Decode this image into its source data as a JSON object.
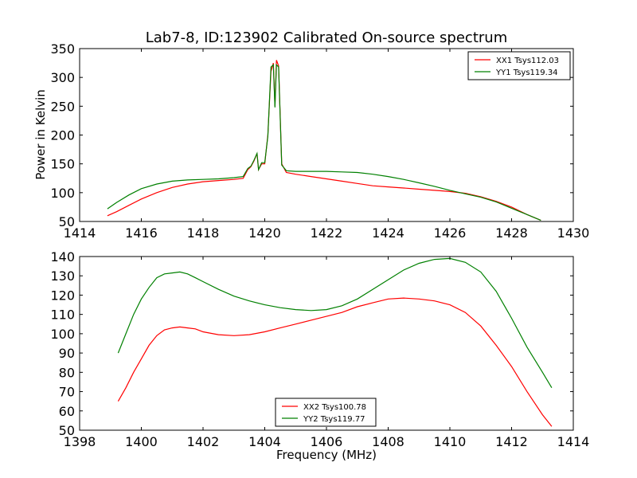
{
  "chart_data": [
    {
      "type": "line",
      "title": "Lab7-8, ID:123902 Calibrated On-source spectrum",
      "xlabel": "",
      "ylabel": "Power in Kelvin",
      "xlim": [
        1414,
        1430
      ],
      "ylim": [
        50,
        350
      ],
      "xticks": [
        1414,
        1416,
        1418,
        1420,
        1422,
        1424,
        1426,
        1428,
        1430
      ],
      "yticks": [
        50,
        100,
        150,
        200,
        250,
        300,
        350
      ],
      "grid": false,
      "legend_position": "upper right",
      "series": [
        {
          "name": "XX1 Tsys112.03",
          "color": "#ff0000",
          "x": [
            1414.9,
            1415.2,
            1415.6,
            1416.0,
            1416.5,
            1417.0,
            1417.5,
            1418.0,
            1418.5,
            1419.0,
            1419.3,
            1419.45,
            1419.55,
            1419.65,
            1419.75,
            1419.8,
            1419.9,
            1420.0,
            1420.1,
            1420.2,
            1420.28,
            1420.33,
            1420.38,
            1420.45,
            1420.55,
            1420.7,
            1421.0,
            1421.5,
            1422.0,
            1422.5,
            1423.0,
            1423.5,
            1424.0,
            1424.5,
            1425.0,
            1425.5,
            1426.0,
            1426.5,
            1427.0,
            1427.5,
            1428.0,
            1428.5,
            1428.95
          ],
          "y": [
            60,
            67,
            78,
            89,
            100,
            109,
            115,
            119,
            121,
            123,
            125,
            140,
            145,
            155,
            168,
            140,
            150,
            150,
            200,
            310,
            325,
            250,
            330,
            320,
            150,
            135,
            132,
            128,
            124,
            120,
            116,
            112,
            110,
            108,
            106,
            104,
            102,
            99,
            93,
            85,
            75,
            62,
            52
          ]
        },
        {
          "name": "YY1 Tsys119.34",
          "color": "#008000",
          "x": [
            1414.9,
            1415.2,
            1415.6,
            1416.0,
            1416.5,
            1417.0,
            1417.5,
            1418.0,
            1418.5,
            1419.0,
            1419.3,
            1419.45,
            1419.55,
            1419.65,
            1419.75,
            1419.8,
            1419.9,
            1420.0,
            1420.1,
            1420.2,
            1420.28,
            1420.33,
            1420.38,
            1420.45,
            1420.55,
            1420.7,
            1421.0,
            1421.5,
            1422.0,
            1422.5,
            1423.0,
            1423.5,
            1424.0,
            1424.5,
            1425.0,
            1425.5,
            1426.0,
            1426.5,
            1427.0,
            1427.5,
            1428.0,
            1428.5,
            1428.95
          ],
          "y": [
            72,
            83,
            96,
            107,
            115,
            120,
            122,
            123,
            124,
            126,
            128,
            142,
            146,
            156,
            168,
            140,
            152,
            152,
            198,
            318,
            322,
            248,
            322,
            318,
            148,
            138,
            137,
            137,
            137,
            136,
            135,
            132,
            128,
            123,
            117,
            111,
            104,
            98,
            92,
            84,
            73,
            62,
            52
          ]
        }
      ]
    },
    {
      "type": "line",
      "title": "",
      "xlabel": "Frequency (MHz)",
      "ylabel": "",
      "xlim": [
        1398,
        1414
      ],
      "ylim": [
        50,
        140
      ],
      "xticks": [
        1398,
        1400,
        1402,
        1404,
        1406,
        1408,
        1410,
        1412,
        1414
      ],
      "yticks": [
        50,
        60,
        70,
        80,
        90,
        100,
        110,
        120,
        130,
        140
      ],
      "grid": false,
      "legend_position": "lower center",
      "series": [
        {
          "name": "XX2 Tsys100.78",
          "color": "#ff0000",
          "x": [
            1399.25,
            1399.5,
            1399.75,
            1400.0,
            1400.25,
            1400.5,
            1400.75,
            1401.0,
            1401.25,
            1401.5,
            1401.75,
            1402.0,
            1402.5,
            1403.0,
            1403.5,
            1404.0,
            1404.5,
            1405.0,
            1405.5,
            1406.0,
            1406.5,
            1407.0,
            1407.5,
            1408.0,
            1408.5,
            1409.0,
            1409.5,
            1410.0,
            1410.5,
            1411.0,
            1411.5,
            1412.0,
            1412.5,
            1413.0,
            1413.3
          ],
          "y": [
            65,
            72,
            80,
            87,
            94,
            99,
            102,
            103,
            103.5,
            103,
            102.5,
            101,
            99.5,
            99,
            99.5,
            101,
            103,
            105,
            107,
            109,
            111,
            114,
            116,
            118,
            118.5,
            118,
            117,
            115,
            111,
            104,
            94,
            83,
            70,
            58,
            52
          ]
        },
        {
          "name": "YY2 Tsys119.77",
          "color": "#008000",
          "x": [
            1399.25,
            1399.5,
            1399.75,
            1400.0,
            1400.25,
            1400.5,
            1400.75,
            1401.0,
            1401.25,
            1401.5,
            1401.75,
            1402.0,
            1402.5,
            1403.0,
            1403.5,
            1404.0,
            1404.5,
            1405.0,
            1405.5,
            1406.0,
            1406.5,
            1407.0,
            1407.5,
            1408.0,
            1408.5,
            1409.0,
            1409.5,
            1410.0,
            1410.5,
            1411.0,
            1411.5,
            1412.0,
            1412.5,
            1413.0,
            1413.3
          ],
          "y": [
            90,
            100,
            110,
            118,
            124,
            129,
            131,
            131.5,
            132,
            131,
            129,
            127,
            123,
            119.5,
            117,
            115,
            113.5,
            112.5,
            112,
            112.5,
            114.5,
            118,
            123,
            128,
            133,
            136.5,
            138.5,
            139,
            137,
            132,
            122,
            108,
            93,
            80,
            72
          ]
        }
      ]
    }
  ]
}
